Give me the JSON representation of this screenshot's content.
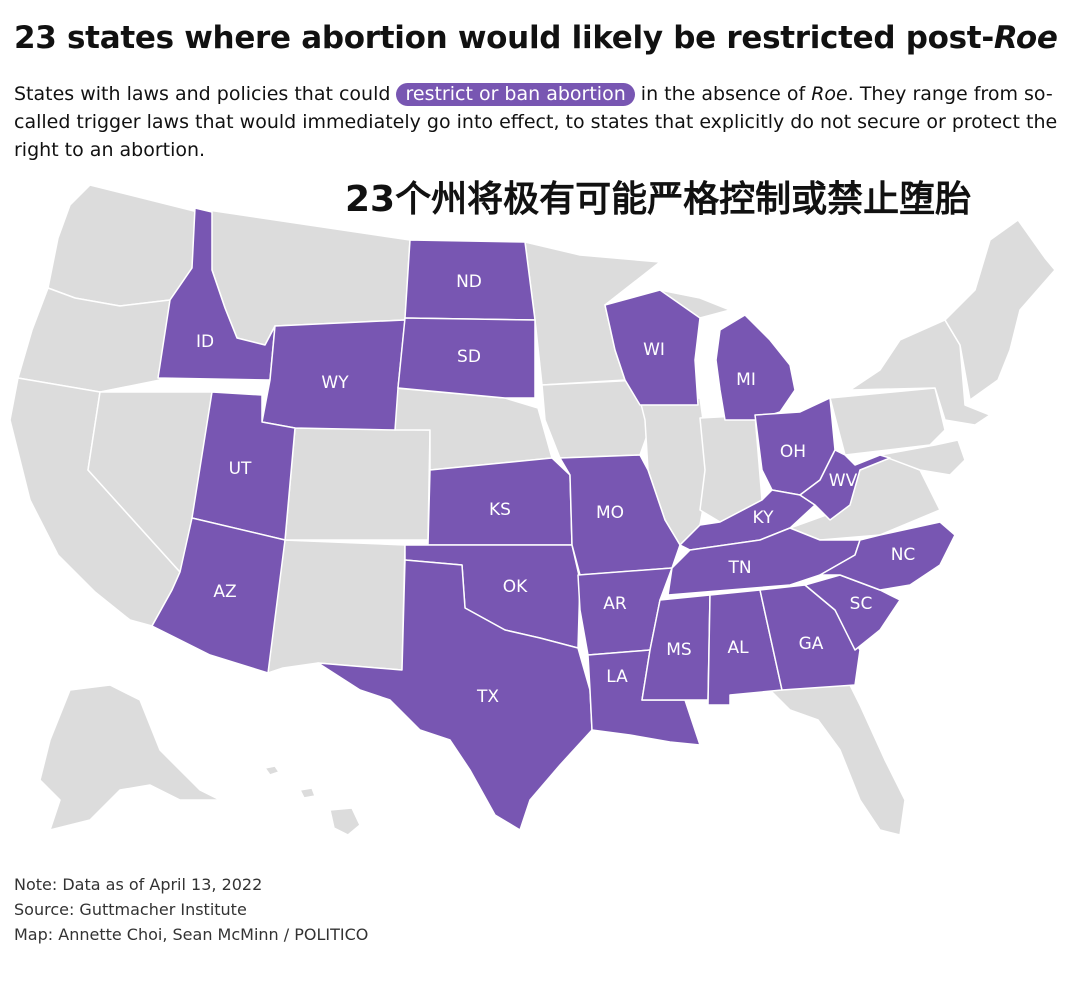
{
  "title": "23 states where abortion would likely be restricted post-",
  "title_italic": "Roe",
  "subtitle": {
    "before": "States with laws and policies that could ",
    "highlight": "restrict or ban abortion",
    "middle": " in the absence of ",
    "italic": "Roe",
    "after": ". They range from so-called trigger laws that would immediately go into effect, to states that explicitly do not secure or protect the right to an abortion."
  },
  "overlay_caption": "23个州将极有可能严格控制或禁止堕胎",
  "colors": {
    "restricted": "#7856b2",
    "other": "#dcdcdc",
    "border": "#ffffff"
  },
  "restricted_states": [
    "ID",
    "WY",
    "UT",
    "AZ",
    "ND",
    "SD",
    "KS",
    "OK",
    "TX",
    "MO",
    "AR",
    "LA",
    "WI",
    "MI",
    "OH",
    "KY",
    "WV",
    "TN",
    "MS",
    "AL",
    "GA",
    "SC",
    "NC"
  ],
  "state_labels": {
    "ID": "ID",
    "WY": "WY",
    "UT": "UT",
    "AZ": "AZ",
    "ND": "ND",
    "SD": "SD",
    "KS": "KS",
    "OK": "OK",
    "TX": "TX",
    "MO": "MO",
    "AR": "AR",
    "LA": "LA",
    "WI": "WI",
    "MI": "MI",
    "OH": "OH",
    "KY": "KY",
    "WV": "WV",
    "TN": "TN",
    "MS": "MS",
    "AL": "AL",
    "GA": "GA",
    "SC": "SC",
    "NC": "NC"
  },
  "notes": {
    "note": "Note: Data as of April 13, 2022",
    "source": "Source: Guttmacher Institute",
    "credit": "Map: Annette Choi, Sean McMinn / POLITICO"
  }
}
